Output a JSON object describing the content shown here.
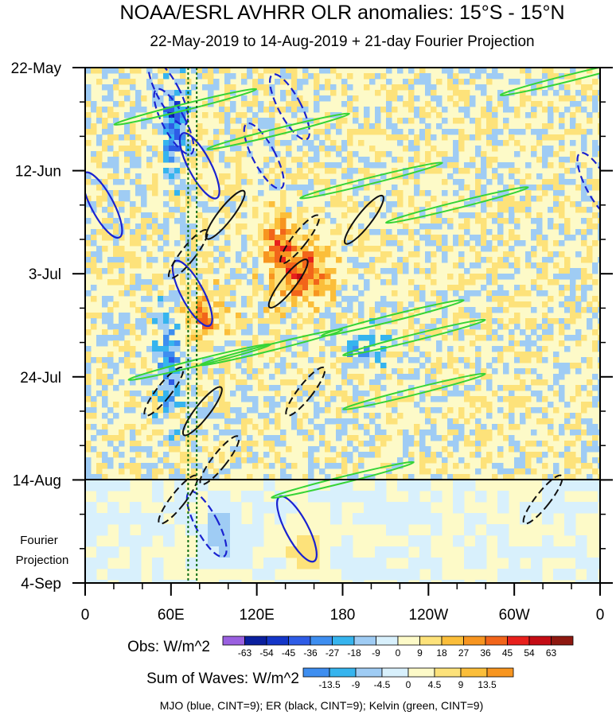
{
  "chart_data": {
    "type": "heatmap",
    "title": "NOAA/ESRL AVHRR OLR anomalies: 15°S - 15°N",
    "subtitle": "22-May-2019 to 14-Aug-2019 + 21-day Fourier Projection",
    "x_ticks": [
      {
        "label": "0",
        "lon": 0
      },
      {
        "label": "60E",
        "lon": 60
      },
      {
        "label": "120E",
        "lon": 120
      },
      {
        "label": "180",
        "lon": 180
      },
      {
        "label": "120W",
        "lon": 240
      },
      {
        "label": "60W",
        "lon": 300
      },
      {
        "label": "0",
        "lon": 360
      }
    ],
    "x_range": [
      0,
      360
    ],
    "y_range_days": [
      0,
      105
    ],
    "y_ticks": [
      {
        "label": "22-May",
        "day": 0
      },
      {
        "label": "12-Jun",
        "day": 21
      },
      {
        "label": "3-Jul",
        "day": 42
      },
      {
        "label": "24-Jul",
        "day": 63
      },
      {
        "label": "14-Aug",
        "day": 84
      },
      {
        "label": "4-Sep",
        "day": 105
      }
    ],
    "projection_label_line1": "Fourier",
    "projection_label_line2": "Projection",
    "projection_start_day": 84,
    "reference_lines_lon": [
      72,
      78
    ],
    "obs_colorbar": {
      "label": "Obs: W/m^2",
      "ticks": [
        "-63",
        "-54",
        "-45",
        "-36",
        "-27",
        "-18",
        "-9",
        "0",
        "9",
        "18",
        "27",
        "36",
        "45",
        "54",
        "63"
      ],
      "colors": [
        "#9a60e0",
        "#0a1f9e",
        "#1436c8",
        "#2e5ce6",
        "#3e8ef0",
        "#36b4ee",
        "#9fccf4",
        "#d8f0fc",
        "#fdfac8",
        "#fde27a",
        "#fbbe3a",
        "#f79520",
        "#f2651a",
        "#e8201c",
        "#c40c14",
        "#8e1810"
      ]
    },
    "waves_colorbar": {
      "label": "Sum of Waves: W/m^2",
      "ticks": [
        "-13.5",
        "-9",
        "-4.5",
        "0",
        "4.5",
        "9",
        "13.5"
      ],
      "colors": [
        "#3e8ef0",
        "#36b4ee",
        "#9fccf4",
        "#d8f0fc",
        "#fdfac8",
        "#fde27a",
        "#fbbe3a",
        "#f79520"
      ]
    },
    "contours_caption": "MJO (blue, CINT=9); ER (black, CINT=9); Kelvin (green, CINT=9)",
    "wave_contours": {
      "mjo": [
        {
          "lon": 62,
          "day": 11,
          "sign": -1
        },
        {
          "lon": 58,
          "day": 5,
          "sign": -1
        },
        {
          "lon": 80,
          "day": 20,
          "sign": 1
        },
        {
          "lon": 125,
          "day": 18,
          "sign": -1
        },
        {
          "lon": 143,
          "day": 8,
          "sign": -1
        },
        {
          "lon": 12,
          "day": 28,
          "sign": 1
        },
        {
          "lon": 75,
          "day": 46,
          "sign": 1
        },
        {
          "lon": 85,
          "day": 93,
          "sign": -1
        },
        {
          "lon": 148,
          "day": 94,
          "sign": 1
        },
        {
          "lon": 358,
          "day": 24,
          "sign": -1
        }
      ],
      "er": [
        {
          "lon": 72,
          "day": 38,
          "sign": -1
        },
        {
          "lon": 98,
          "day": 30,
          "sign": 1
        },
        {
          "lon": 150,
          "day": 35,
          "sign": -1
        },
        {
          "lon": 142,
          "day": 44,
          "sign": 1
        },
        {
          "lon": 195,
          "day": 31,
          "sign": 1
        },
        {
          "lon": 55,
          "day": 66,
          "sign": -1
        },
        {
          "lon": 82,
          "day": 70,
          "sign": 1
        },
        {
          "lon": 94,
          "day": 80,
          "sign": -1
        },
        {
          "lon": 154,
          "day": 66,
          "sign": -1
        },
        {
          "lon": 65,
          "day": 88,
          "sign": -1
        },
        {
          "lon": 320,
          "day": 88,
          "sign": -1
        }
      ],
      "kelvin": [
        {
          "lon": 70,
          "day": 8,
          "sign": 1
        },
        {
          "lon": 135,
          "day": 13,
          "sign": 1
        },
        {
          "lon": 200,
          "day": 23,
          "sign": 1
        },
        {
          "lon": 260,
          "day": 28,
          "sign": 1
        },
        {
          "lon": 130,
          "day": 57,
          "sign": 1
        },
        {
          "lon": 230,
          "day": 55,
          "sign": 1
        },
        {
          "lon": 230,
          "day": 66,
          "sign": 1
        },
        {
          "lon": 80,
          "day": 60,
          "sign": 1
        },
        {
          "lon": 340,
          "day": 2,
          "sign": 1
        },
        {
          "lon": 215,
          "day": 51,
          "sign": 1
        },
        {
          "lon": 180,
          "day": 84,
          "sign": 1
        }
      ]
    }
  }
}
